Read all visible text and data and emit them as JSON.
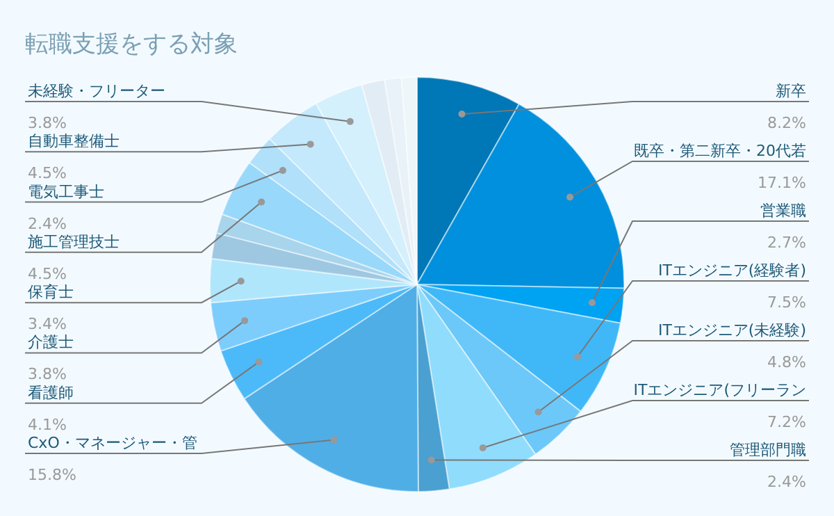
{
  "chart_data": {
    "type": "pie",
    "title": "転職支援をする対象",
    "categories": [
      "新卒",
      "既卒・第二新卒・20代若",
      "営業職",
      "ITエンジニア(経験者)",
      "ITエンジニア(未経験)",
      "ITエンジニア(フリーラン",
      "管理部門職",
      "CxO・マネージャー・管",
      "看護師",
      "介護士",
      "保育士",
      null,
      null,
      "施工管理技士",
      "電気工事士",
      "自動車整備士",
      "未経験・フリーター",
      null,
      null,
      null
    ],
    "values": [
      8.2,
      17.1,
      2.7,
      7.5,
      4.8,
      7.2,
      2.4,
      15.8,
      4.1,
      3.8,
      3.4,
      2.0,
      1.5,
      4.5,
      2.4,
      4.5,
      3.8,
      1.8,
      1.3,
      1.2
    ],
    "colors": [
      "#0077b6",
      "#0090dd",
      "#00a2f2",
      "#40b8f8",
      "#6cc8f8",
      "#90dcfc",
      "#4aa0d0",
      "#50aee6",
      "#4cbaf8",
      "#7dcdfc",
      "#b0e6fc",
      "#9ec8e2",
      "#a8d4ec",
      "#98d8fa",
      "#b0e0fa",
      "#c4e8fc",
      "#d4f0fc",
      "#e2ecf4",
      "#e8f2f8",
      "#eef6fa"
    ],
    "value_labels": [
      "8.2%",
      "17.1%",
      "2.7%",
      "7.5%",
      "4.8%",
      "7.2%",
      "2.4%",
      "15.8%",
      "4.1%",
      "3.8%",
      "3.4%",
      null,
      null,
      "4.5%",
      "2.4%",
      "4.5%",
      "3.8%",
      null,
      null,
      null
    ],
    "legend": false
  }
}
